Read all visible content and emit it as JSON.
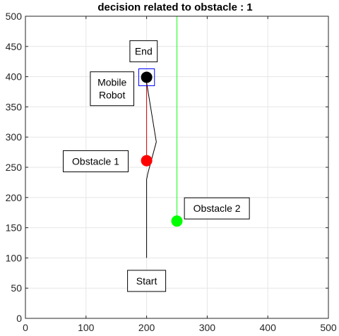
{
  "chart_data": {
    "type": "scatter",
    "title": "decision related to obstacle  : 1",
    "xlabel": "",
    "ylabel": "",
    "xlim": [
      0,
      500
    ],
    "ylim": [
      0,
      500
    ],
    "xticks": [
      0,
      100,
      200,
      300,
      400,
      500
    ],
    "yticks": [
      0,
      50,
      100,
      150,
      200,
      250,
      300,
      350,
      400,
      450,
      500
    ],
    "grid": true,
    "box": true,
    "colors": {
      "axes": "#262626",
      "grid": "#e6e6e6",
      "robot": "#000000",
      "obstacle1": "#ff0000",
      "obstacle2": "#00ff00",
      "path": "#000000",
      "robot_to_obstacle1": "#cc0000",
      "obstacle2_vertical": "#33ff33",
      "robot_box": "#0000ff"
    },
    "points": [
      {
        "id": "robot",
        "x": 200,
        "y": 399,
        "color": "#000000"
      },
      {
        "id": "obstacle1",
        "x": 200,
        "y": 261,
        "color": "#ff0000"
      },
      {
        "id": "obstacle2",
        "x": 250,
        "y": 161,
        "color": "#00ff00"
      }
    ],
    "path": {
      "x": [
        200,
        200,
        202,
        216,
        200
      ],
      "y": [
        100,
        230,
        240,
        292,
        390
      ]
    },
    "robot_to_obstacle1_line": {
      "x": [
        200,
        200
      ],
      "y": [
        399,
        261
      ]
    },
    "obstacle2_vertical_line": {
      "x": [
        250,
        250
      ],
      "y": [
        500,
        161
      ]
    },
    "robot_box": {
      "x": [
        187,
        213
      ],
      "y": [
        385,
        413
      ]
    },
    "annotations": [
      {
        "id": "end",
        "text": [
          "End"
        ],
        "x": 195,
        "y": 442
      },
      {
        "id": "mobile-robot",
        "text": [
          "Mobile",
          "Robot"
        ],
        "x": 143,
        "y": 380
      },
      {
        "id": "obstacle1",
        "text": [
          "Obstacle 1"
        ],
        "x": 116,
        "y": 260
      },
      {
        "id": "obstacle2",
        "text": [
          "Obstacle 2"
        ],
        "x": 316,
        "y": 182
      },
      {
        "id": "start",
        "text": [
          "Start"
        ],
        "x": 200,
        "y": 62
      }
    ]
  }
}
